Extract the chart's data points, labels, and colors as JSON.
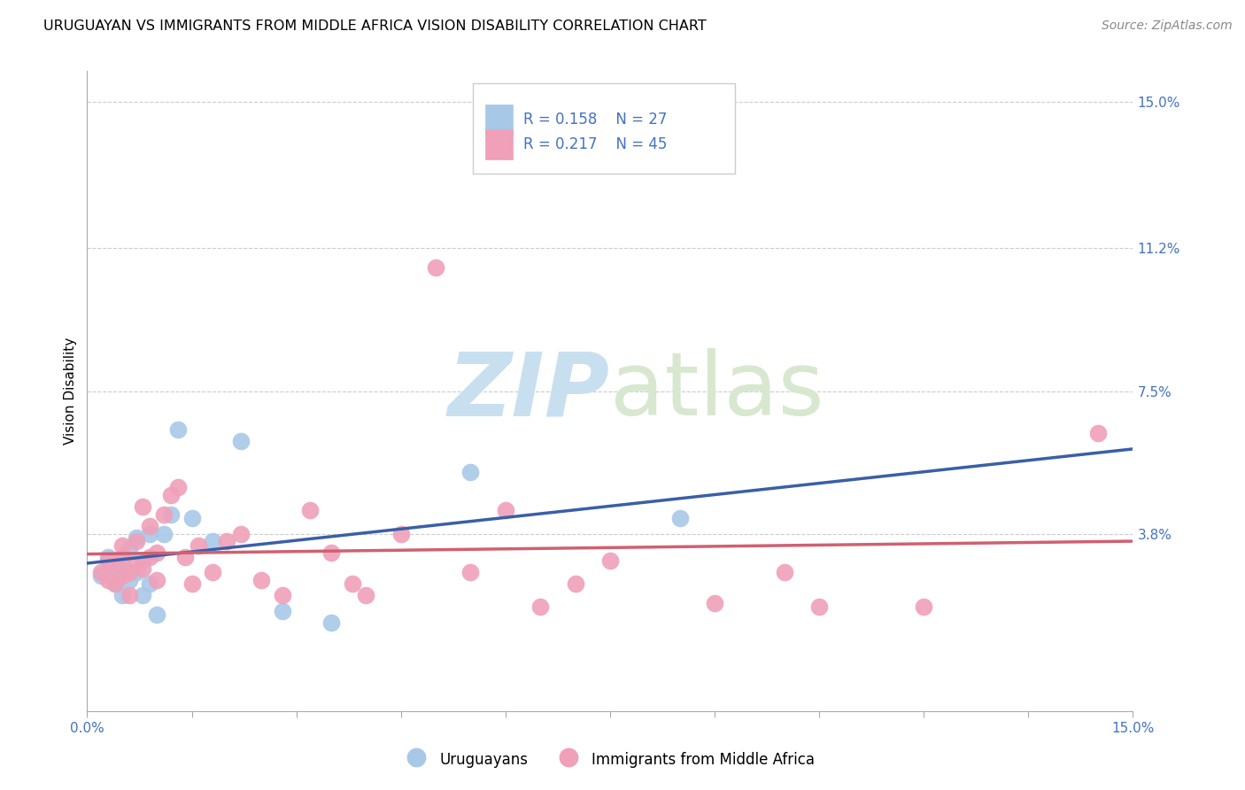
{
  "title": "URUGUAYAN VS IMMIGRANTS FROM MIDDLE AFRICA VISION DISABILITY CORRELATION CHART",
  "source": "Source: ZipAtlas.com",
  "ylabel": "Vision Disability",
  "xlim": [
    0.0,
    0.15
  ],
  "ylim": [
    -0.008,
    0.158
  ],
  "right_ytick_labels": [
    "15.0%",
    "11.2%",
    "7.5%",
    "3.8%"
  ],
  "right_ytick_values": [
    0.15,
    0.112,
    0.075,
    0.038
  ],
  "xtick_labels": [
    "0.0%",
    "",
    "",
    "",
    "",
    "",
    "",
    "",
    "",
    "",
    "15.0%"
  ],
  "xtick_values": [
    0.0,
    0.015,
    0.03,
    0.045,
    0.06,
    0.075,
    0.09,
    0.105,
    0.12,
    0.135,
    0.15
  ],
  "uruguayan_color": "#a8c8e8",
  "immigrant_color": "#f0a0b8",
  "uruguayan_line_color": "#3a5fa8",
  "immigrant_line_color": "#d06070",
  "background_color": "#ffffff",
  "watermark_color": "#ddeef8",
  "legend_R1": "R = 0.158",
  "legend_N1": "N = 27",
  "legend_R2": "R = 0.217",
  "legend_N2": "N = 45",
  "uruguayan_x": [
    0.002,
    0.003,
    0.003,
    0.004,
    0.004,
    0.005,
    0.005,
    0.005,
    0.006,
    0.006,
    0.007,
    0.007,
    0.008,
    0.008,
    0.009,
    0.009,
    0.01,
    0.011,
    0.012,
    0.013,
    0.015,
    0.018,
    0.022,
    0.028,
    0.035,
    0.055,
    0.085
  ],
  "uruguayan_y": [
    0.027,
    0.032,
    0.028,
    0.03,
    0.025,
    0.031,
    0.029,
    0.022,
    0.026,
    0.034,
    0.028,
    0.037,
    0.031,
    0.022,
    0.025,
    0.038,
    0.017,
    0.038,
    0.043,
    0.065,
    0.042,
    0.036,
    0.062,
    0.018,
    0.015,
    0.054,
    0.042
  ],
  "immigrant_x": [
    0.002,
    0.003,
    0.003,
    0.004,
    0.004,
    0.005,
    0.005,
    0.005,
    0.006,
    0.006,
    0.007,
    0.007,
    0.008,
    0.008,
    0.009,
    0.009,
    0.01,
    0.01,
    0.011,
    0.012,
    0.013,
    0.014,
    0.015,
    0.016,
    0.018,
    0.02,
    0.022,
    0.025,
    0.028,
    0.032,
    0.035,
    0.038,
    0.04,
    0.045,
    0.05,
    0.055,
    0.06,
    0.065,
    0.07,
    0.075,
    0.09,
    0.1,
    0.105,
    0.12,
    0.145
  ],
  "immigrant_y": [
    0.028,
    0.026,
    0.031,
    0.03,
    0.025,
    0.027,
    0.032,
    0.035,
    0.028,
    0.022,
    0.03,
    0.036,
    0.029,
    0.045,
    0.04,
    0.032,
    0.026,
    0.033,
    0.043,
    0.048,
    0.05,
    0.032,
    0.025,
    0.035,
    0.028,
    0.036,
    0.038,
    0.026,
    0.022,
    0.044,
    0.033,
    0.025,
    0.022,
    0.038,
    0.107,
    0.028,
    0.044,
    0.019,
    0.025,
    0.031,
    0.02,
    0.028,
    0.019,
    0.019,
    0.064
  ],
  "title_fontsize": 11.5,
  "label_fontsize": 11,
  "tick_fontsize": 11,
  "source_fontsize": 10
}
